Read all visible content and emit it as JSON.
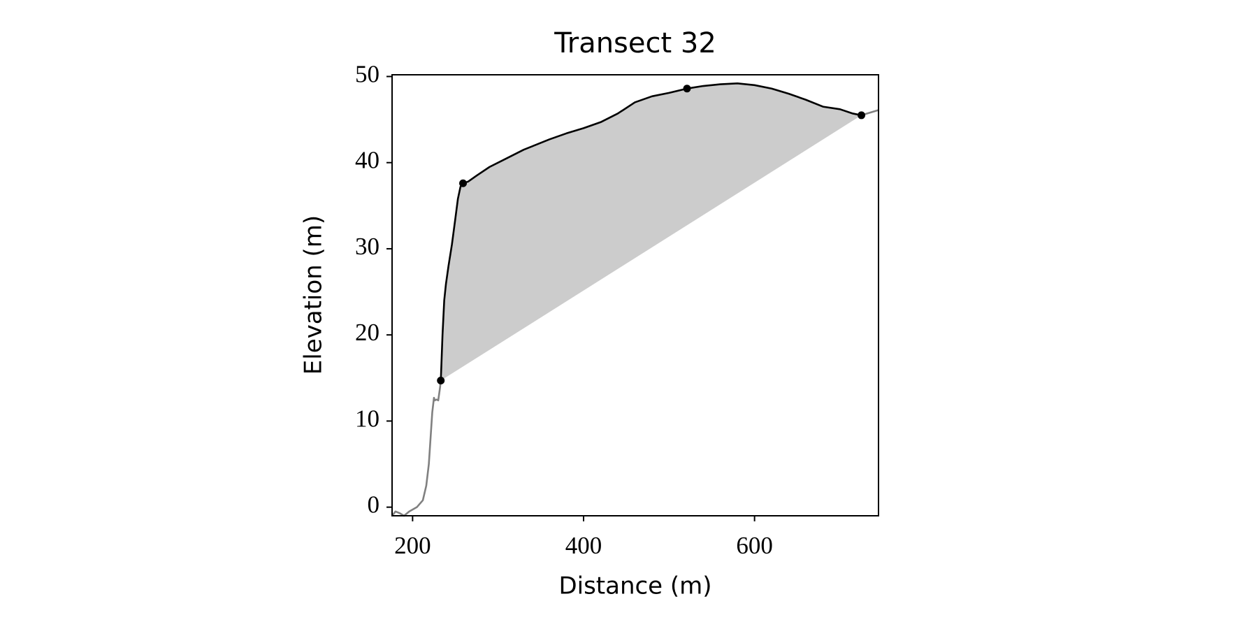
{
  "chart_data": {
    "type": "line",
    "title": "Transect 32",
    "x_label": "Distance (m)",
    "y_label": "Elevation (m)",
    "xlim": [
      176,
      745
    ],
    "ylim": [
      -1,
      50.2
    ],
    "xticks": [
      200,
      400,
      600
    ],
    "yticks": [
      0,
      10,
      20,
      30,
      40,
      50
    ],
    "series": [
      {
        "color": "#808080",
        "x": [
          176,
          180,
          185,
          190,
          196,
          205,
          212,
          216,
          219,
          221,
          223,
          225,
          226,
          228,
          230,
          232,
          233,
          null,
          725,
          745
        ],
        "values": [
          -1,
          -0.5,
          -0.7,
          -1,
          -0.5,
          0,
          0.8,
          2.5,
          5,
          8,
          11,
          12.7,
          12.4,
          12.5,
          12.4,
          13.8,
          14.7,
          null,
          45.5,
          46.1
        ]
      },
      {
        "color": "#000000",
        "x": [
          233,
          235,
          237,
          239,
          242,
          246,
          250,
          253,
          256,
          259,
          265,
          275,
          290,
          310,
          330,
          360,
          380,
          400,
          420,
          440,
          460,
          480,
          500,
          521,
          540,
          560,
          580,
          600,
          620,
          640,
          660,
          680,
          700,
          715,
          725
        ],
        "values": [
          14.7,
          20,
          24,
          25.9,
          28,
          30.5,
          33.5,
          35.8,
          37.2,
          37.6,
          37.8,
          38.5,
          39.5,
          40.5,
          41.5,
          42.7,
          43.4,
          44,
          44.7,
          45.7,
          47,
          47.7,
          48.1,
          48.6,
          48.9,
          49.1,
          49.2,
          49,
          48.6,
          48,
          47.3,
          46.5,
          46.2,
          45.7,
          45.5
        ]
      }
    ],
    "points": {
      "color": "#000000",
      "x": [
        233,
        259,
        521,
        725
      ],
      "values": [
        14.7,
        37.6,
        48.6,
        45.5
      ]
    },
    "fill_color": "#cccccc"
  }
}
